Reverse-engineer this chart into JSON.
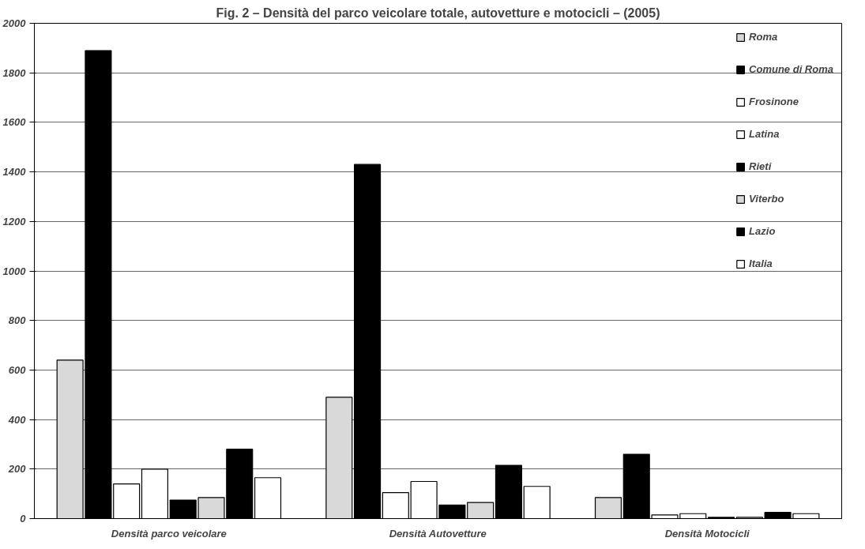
{
  "chart_data": {
    "type": "bar",
    "title": "Fig. 2 – Densità del parco veicolare totale, autovetture e motocicli – (2005)",
    "categories": [
      "Densità parco veicolare",
      "Densità Autovetture",
      "Densità Motocicli"
    ],
    "series": [
      {
        "name": "Roma",
        "color": "#d9d9d9",
        "values": [
          640,
          490,
          85
        ]
      },
      {
        "name": "Comune di Roma",
        "color": "#000000",
        "values": [
          1890,
          1430,
          260
        ]
      },
      {
        "name": "Frosinone",
        "color": "#ffffff",
        "values": [
          140,
          105,
          15
        ]
      },
      {
        "name": "Latina",
        "color": "#ffffff",
        "values": [
          200,
          150,
          20
        ]
      },
      {
        "name": "Rieti",
        "color": "#000000",
        "values": [
          75,
          55,
          5
        ]
      },
      {
        "name": "Viterbo",
        "color": "#d9d9d9",
        "values": [
          85,
          65,
          5
        ]
      },
      {
        "name": "Lazio",
        "color": "#000000",
        "values": [
          280,
          215,
          25
        ]
      },
      {
        "name": "Italia",
        "color": "#ffffff",
        "values": [
          165,
          130,
          20
        ]
      }
    ],
    "ylim": [
      0,
      2000
    ],
    "yticks": [
      0,
      200,
      400,
      600,
      800,
      1000,
      1200,
      1400,
      1600,
      1800,
      2000
    ],
    "grid": "y",
    "legend": "top right"
  }
}
